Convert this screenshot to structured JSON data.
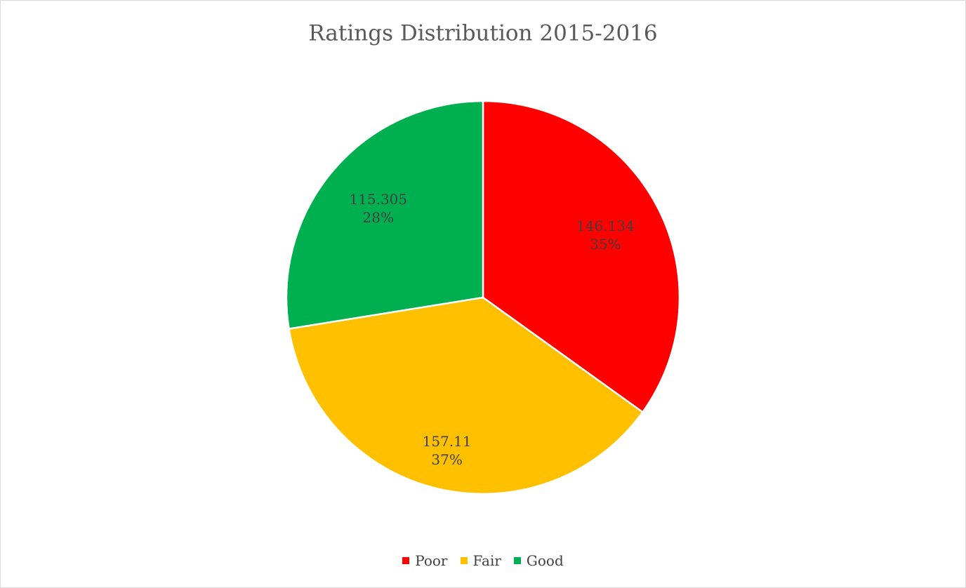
{
  "chart_data": {
    "type": "pie",
    "title": "Ratings Distribution 2015-2016",
    "categories": [
      "Poor",
      "Fair",
      "Good"
    ],
    "values": [
      146.134,
      157.11,
      115.305
    ],
    "value_labels": [
      "146.134\n35%",
      "157.11\n37%",
      "115.305\n28%"
    ],
    "colors": [
      "#ff0000",
      "#ffc000",
      "#00b050"
    ],
    "legend": "bottom"
  }
}
